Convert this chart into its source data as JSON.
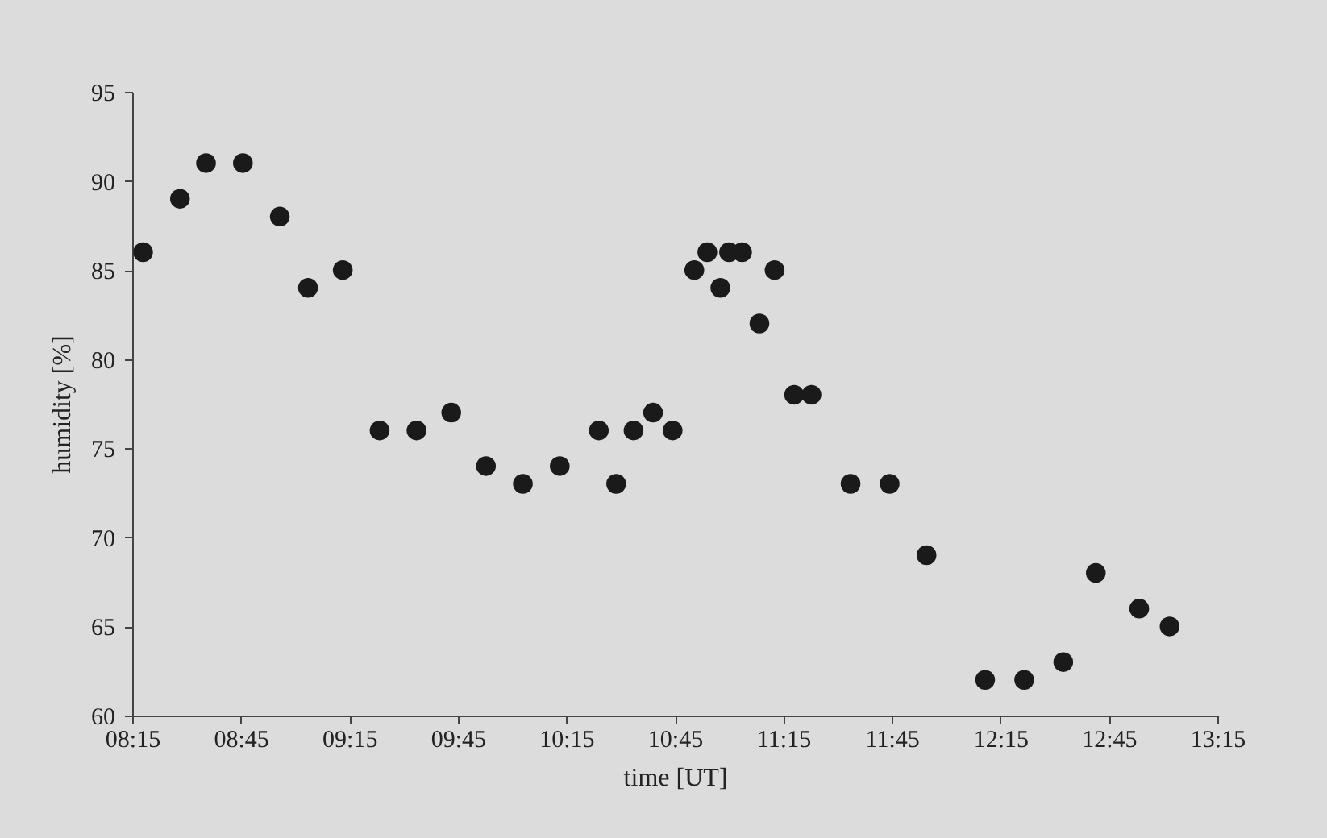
{
  "chart_data": {
    "type": "scatter",
    "xlabel": "time [UT]",
    "ylabel": "humidity [%]",
    "x": [
      8.3,
      8.47,
      8.59,
      8.76,
      8.93,
      9.06,
      9.22,
      9.39,
      9.56,
      9.72,
      9.88,
      10.05,
      10.22,
      10.4,
      10.48,
      10.56,
      10.65,
      10.74,
      10.84,
      10.9,
      10.96,
      11.0,
      11.06,
      11.14,
      11.21,
      11.3,
      11.38,
      11.56,
      11.74,
      11.91,
      12.18,
      12.36,
      12.54,
      12.69,
      12.89,
      13.03
    ],
    "series": [
      {
        "color": "#1a1a1a",
        "values": [
          86,
          89,
          91,
          91,
          88,
          84,
          85,
          76,
          76,
          77,
          74,
          73,
          74,
          76,
          73,
          76,
          77,
          76,
          85,
          86,
          84,
          86,
          86,
          82,
          85,
          78,
          78,
          73,
          73,
          69,
          62,
          62,
          63,
          68,
          66,
          65
        ]
      }
    ],
    "xlim": [
      8.25,
      13.25
    ],
    "xticks": [
      {
        "value": 8.25,
        "label": "08:15"
      },
      {
        "value": 8.75,
        "label": "08:45"
      },
      {
        "value": 9.25,
        "label": "09:15"
      },
      {
        "value": 9.75,
        "label": "09:45"
      },
      {
        "value": 10.25,
        "label": "10:15"
      },
      {
        "value": 10.75,
        "label": "10:45"
      },
      {
        "value": 11.25,
        "label": "11:15"
      },
      {
        "value": 11.75,
        "label": "11:45"
      },
      {
        "value": 12.25,
        "label": "12:15"
      },
      {
        "value": 12.75,
        "label": "12:45"
      },
      {
        "value": 13.25,
        "label": "13:15"
      }
    ],
    "ylim": [
      60,
      95
    ],
    "yticks": [
      60,
      65,
      70,
      75,
      80,
      85,
      90,
      95
    ],
    "marker": "circle"
  }
}
